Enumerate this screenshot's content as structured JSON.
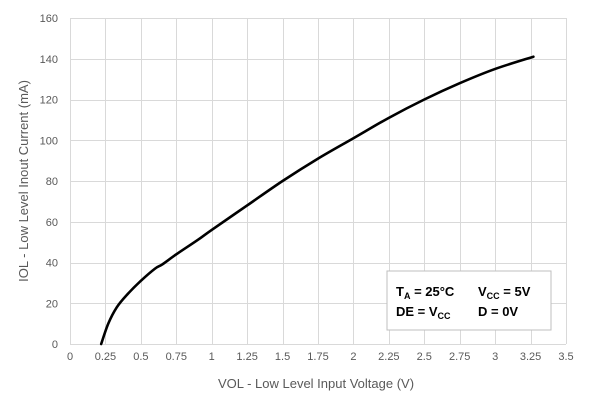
{
  "chart_data": {
    "type": "line",
    "xlabel": "VOL - Low Level Input Voltage (V)",
    "ylabel": "IOL - Low Level Inout Current (mA)",
    "xlim": [
      0,
      3.5
    ],
    "ylim": [
      0,
      160
    ],
    "x_ticks": [
      "0",
      "0.25",
      "0.5",
      "0.75",
      "1",
      "1.25",
      "1.5",
      "1.75",
      "2",
      "2.25",
      "2.5",
      "2.75",
      "3",
      "3.25",
      "3.5"
    ],
    "y_ticks": [
      "0",
      "20",
      "40",
      "60",
      "80",
      "100",
      "120",
      "140",
      "160"
    ],
    "grid": true,
    "series": [
      {
        "color": "#000000",
        "x": [
          0.22,
          0.27,
          0.33,
          0.4,
          0.5,
          0.6,
          0.65,
          0.75,
          0.9,
          1.0,
          1.25,
          1.5,
          1.75,
          2.0,
          2.25,
          2.5,
          2.75,
          3.0,
          3.27
        ],
        "y": [
          0,
          10,
          18,
          24,
          31,
          37,
          39,
          44,
          51,
          56,
          68,
          80,
          91,
          101,
          111,
          120,
          128,
          135,
          141
        ]
      }
    ],
    "annotation": {
      "line1": {
        "t": "T",
        "t_sub": "A",
        "t_val": " = 25°C",
        "v": "V",
        "v_sub": "CC",
        "v_val": " = 5V"
      },
      "line2": {
        "de": "DE = ",
        "de_v": "V",
        "de_sub": "CC",
        "d": "D =  0V"
      }
    }
  }
}
